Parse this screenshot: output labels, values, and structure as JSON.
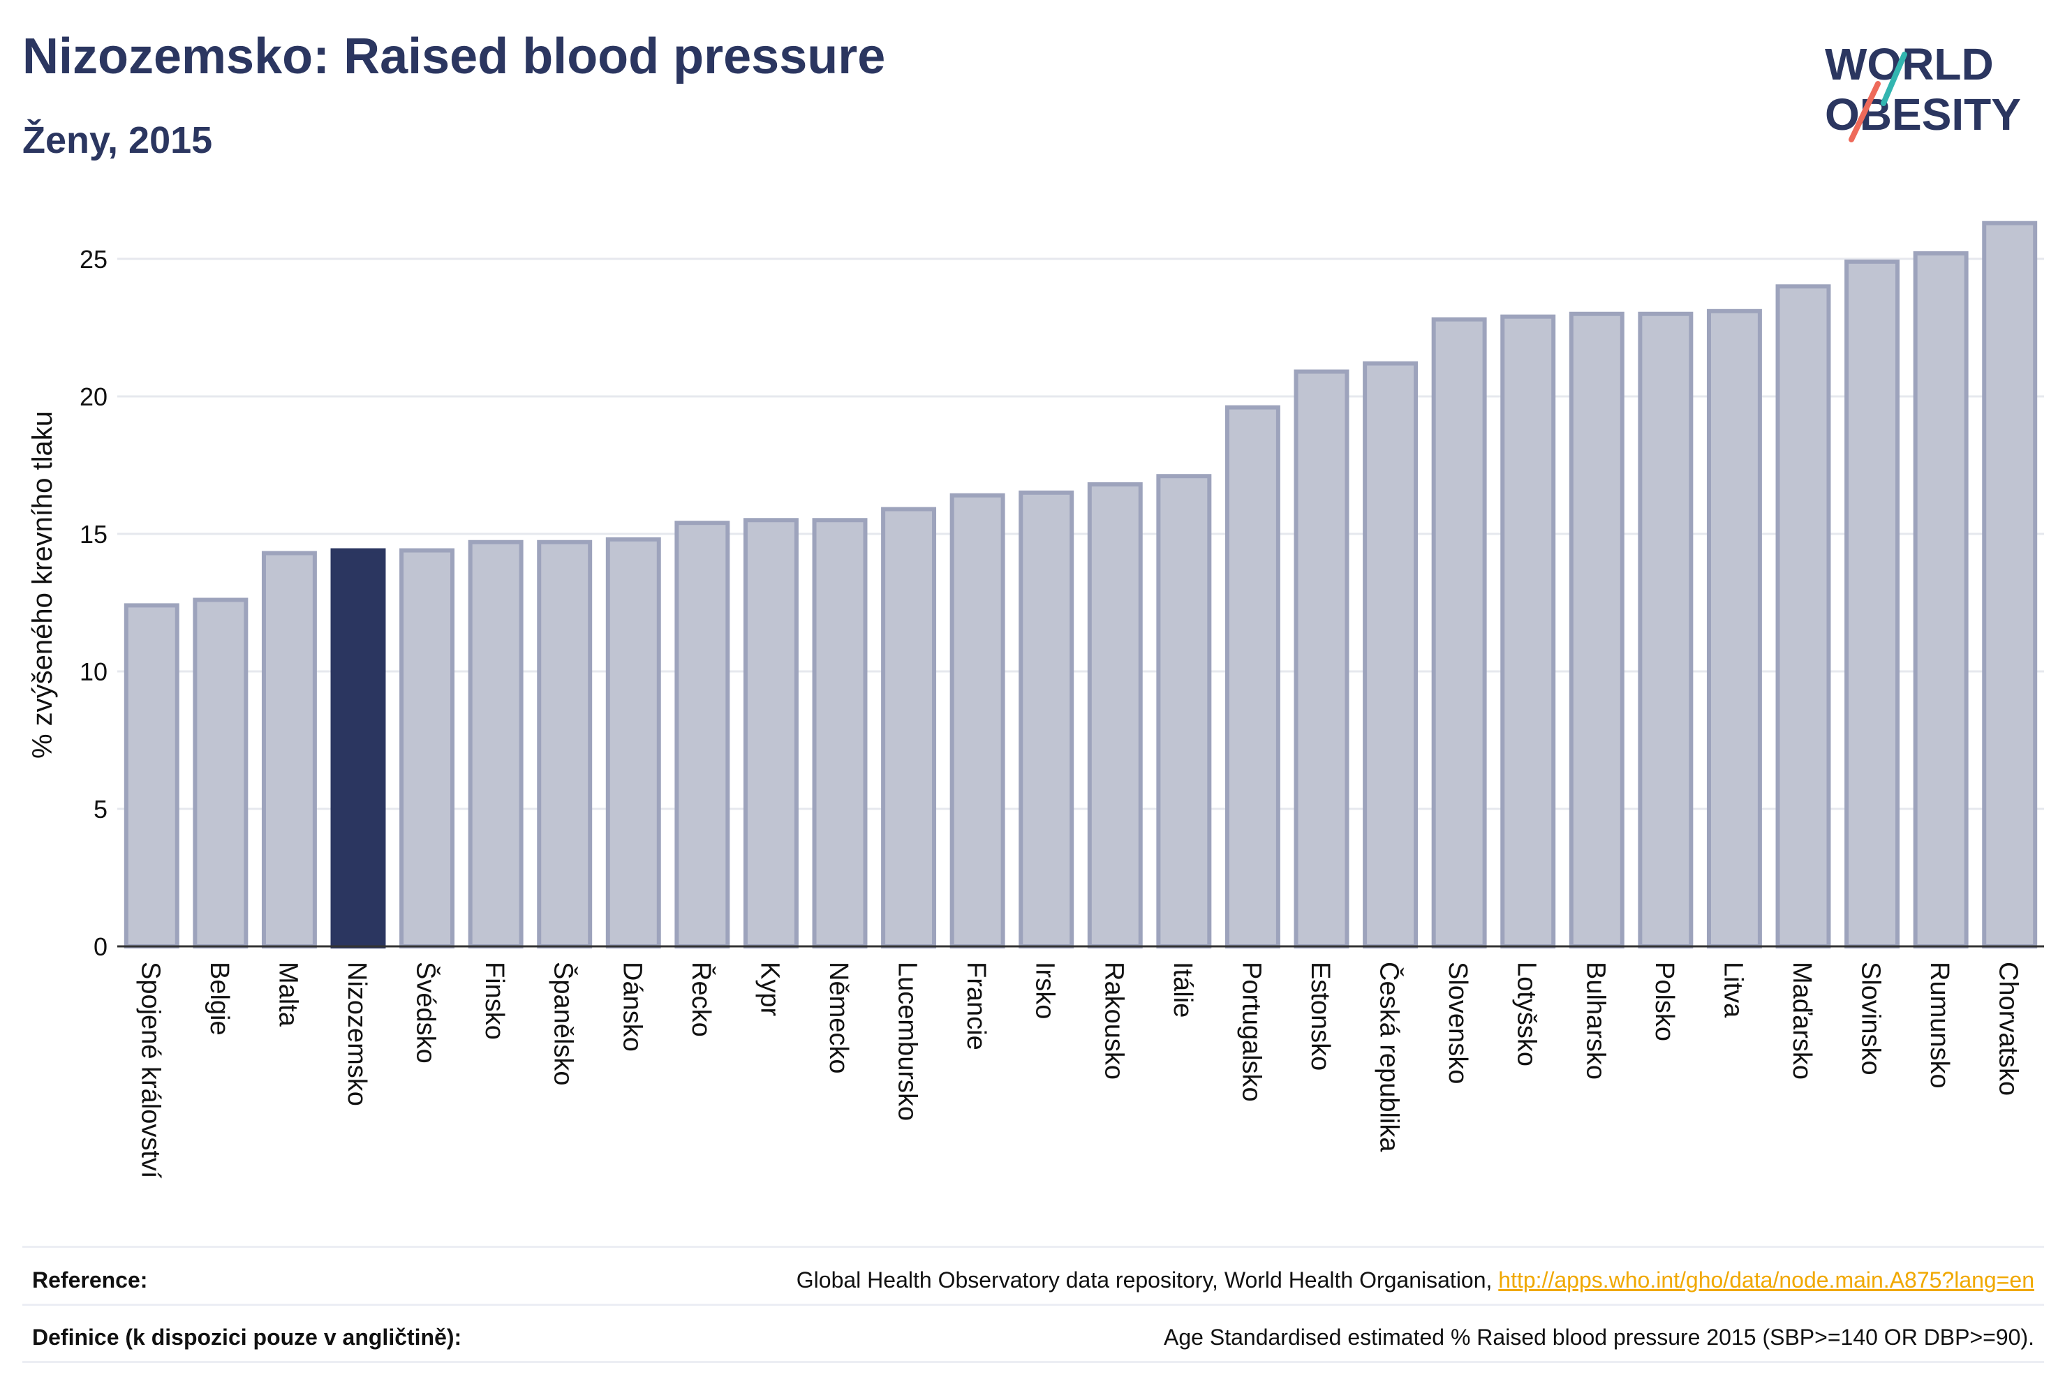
{
  "header": {
    "title": "Nizozemsko: Raised blood pressure",
    "subtitle": "Ženy, 2015"
  },
  "logo": {
    "line1": "WORLD",
    "line2": "OBESITY"
  },
  "colors": {
    "highlight": "#2b3660",
    "bar_fill": "#c0c4d2",
    "bar_stroke": "#9da3bc",
    "text_dark": "#2b3660",
    "link": "#f0a800"
  },
  "chart_data": {
    "type": "bar",
    "ylabel": "% zvýšeného krevního tlaku",
    "ylim": [
      0,
      26.8
    ],
    "yticks": [
      0,
      5,
      10,
      15,
      20,
      25
    ],
    "grid": true,
    "highlight_category": "Nizozemsko",
    "categories": [
      "Spojené království",
      "Belgie",
      "Malta",
      "Nizozemsko",
      "Švédsko",
      "Finsko",
      "Španělsko",
      "Dánsko",
      "Řecko",
      "Kypr",
      "Německo",
      "Lucembursko",
      "Francie",
      "Irsko",
      "Rakousko",
      "Itálie",
      "Portugalsko",
      "Estonsko",
      "Česká republika",
      "Slovensko",
      "Lotyšsko",
      "Bulharsko",
      "Polsko",
      "Litva",
      "Maďarsko",
      "Slovinsko",
      "Rumunsko",
      "Chorvatsko"
    ],
    "values": [
      12.4,
      12.6,
      14.3,
      14.4,
      14.4,
      14.7,
      14.7,
      14.8,
      15.4,
      15.5,
      15.5,
      15.9,
      16.4,
      16.5,
      16.8,
      17.1,
      19.6,
      20.9,
      21.2,
      22.8,
      22.9,
      23.0,
      23.0,
      23.1,
      24.0,
      24.9,
      25.2,
      26.3
    ]
  },
  "footer": {
    "reference_label": "Reference:",
    "reference_text": "Global Health Observatory data repository, World Health Organisation, ",
    "reference_link": "http://apps.who.int/gho/data/node.main.A875?lang=en",
    "definition_label": "Definice (k dispozici pouze v angličtině):",
    "definition_text": "Age Standardised estimated % Raised blood pressure 2015 (SBP>=140 OR DBP>=90)."
  }
}
